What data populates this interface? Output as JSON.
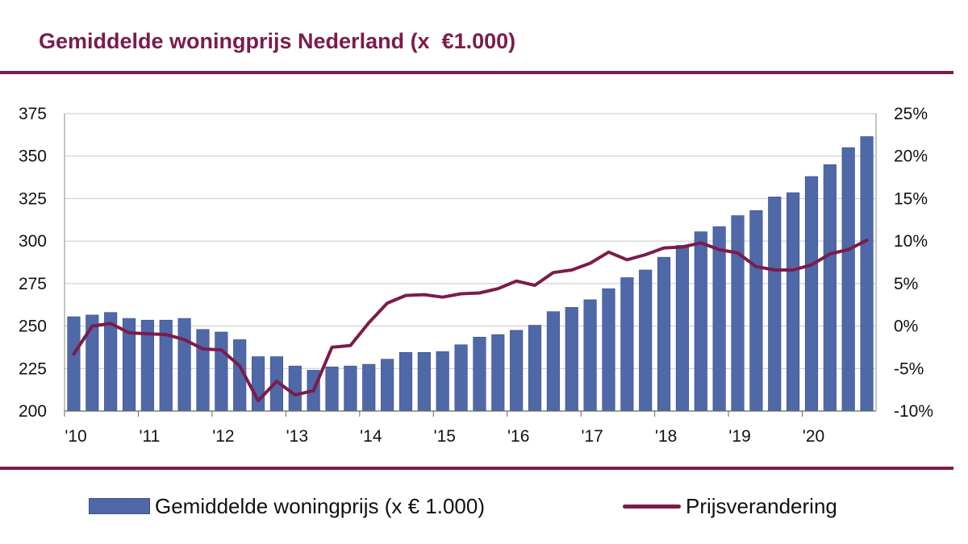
{
  "title": "Gemiddelde woningprijs Nederland (x  €1.000)",
  "colors": {
    "accent": "#7b1c4b",
    "bar": "#4f68a8",
    "bar_border": "#3b5089",
    "grid": "#c8c8c8"
  },
  "chart_data": {
    "type": "bar+line",
    "title": "Gemiddelde woningprijs Nederland (x  €1.000)",
    "x_tick_labels": [
      "'10",
      "'11",
      "'12",
      "'13",
      "'14",
      "'15",
      "'16",
      "'17",
      "'18",
      "'19",
      "'20"
    ],
    "x_tick_quarters": [
      0,
      4,
      8,
      12,
      16,
      20,
      24,
      28,
      32,
      36,
      40
    ],
    "y_left": {
      "ticks": [
        200,
        225,
        250,
        275,
        300,
        325,
        350,
        375
      ],
      "range": [
        200,
        375
      ]
    },
    "y_right": {
      "ticks": [
        "-10%",
        "-5%",
        "0%",
        "5%",
        "10%",
        "15%",
        "20%",
        "25%"
      ],
      "range": [
        -10,
        25
      ]
    },
    "grid": true,
    "legend_position": "bottom",
    "series": [
      {
        "name": "Gemiddelde woningprijs (x € 1.000)",
        "type": "bar",
        "axis": "left",
        "values": [
          255.5,
          256.5,
          258,
          254.5,
          253.5,
          253.5,
          254.5,
          248,
          246.5,
          242,
          232,
          232,
          226.5,
          224,
          226,
          226.5,
          227.5,
          230.5,
          234.5,
          234.5,
          235,
          239,
          243.5,
          245,
          247.5,
          250.5,
          258.5,
          261,
          265.5,
          272,
          278.5,
          283,
          290.5,
          297.5,
          305.5,
          308.5,
          315,
          318,
          326,
          328.5,
          338,
          345,
          355,
          361.5
        ]
      },
      {
        "name": "Prijsverandering",
        "type": "line",
        "axis": "right",
        "values": [
          -3.3,
          0.0,
          0.3,
          -0.8,
          -0.9,
          -1.0,
          -1.6,
          -2.7,
          -2.8,
          -4.7,
          -8.8,
          -6.5,
          -8.1,
          -7.6,
          -2.5,
          -2.3,
          0.4,
          2.7,
          3.6,
          3.7,
          3.4,
          3.8,
          3.9,
          4.4,
          5.3,
          4.8,
          6.3,
          6.6,
          7.4,
          8.7,
          7.8,
          8.4,
          9.2,
          9.3,
          9.8,
          9.0,
          8.6,
          7.0,
          6.6,
          6.6,
          7.2,
          8.5,
          9.0,
          10.1
        ]
      }
    ]
  },
  "legend": {
    "bars_label": "Gemiddelde woningprijs (x € 1.000)",
    "line_label": "Prijsverandering"
  }
}
